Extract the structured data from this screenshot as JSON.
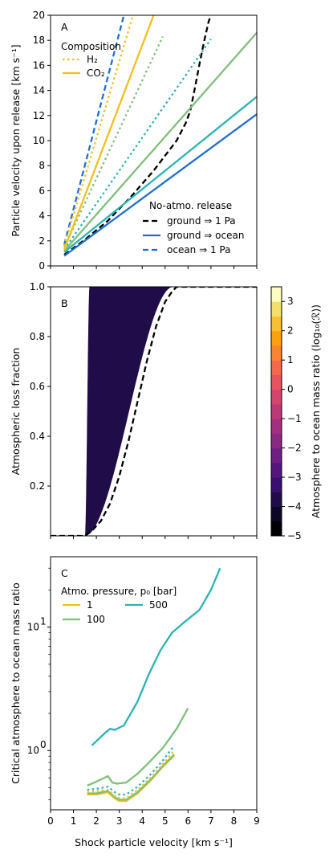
{
  "chart_data": [
    {
      "type": "line",
      "panel_label": "A",
      "ylabel": "Particle velocity upon release [km s⁻¹]",
      "xlim": [
        0,
        9
      ],
      "ylim": [
        0,
        20
      ],
      "yticks": [
        "0",
        "2",
        "4",
        "6",
        "8",
        "10",
        "12",
        "14",
        "16",
        "18",
        "20"
      ],
      "legend_composition": {
        "title": "Composition",
        "entries": [
          {
            "label": "H₂",
            "style": "dotted",
            "color": "#f2c01c"
          },
          {
            "label": "CO₂",
            "style": "solid",
            "color": "#f2c01c"
          }
        ]
      },
      "legend_release": {
        "title": "No-atmo. release",
        "entries": [
          {
            "label": "ground ⇒ 1 Pa",
            "style": "dashed",
            "color": "#000000"
          },
          {
            "label": "ground ⇒ ocean",
            "style": "solid",
            "color": "#1f6fd0"
          },
          {
            "label": "ocean ⇒ 1 Pa",
            "style": "dashed",
            "color": "#1f6fd0"
          }
        ]
      },
      "series": [
        {
          "style": "dashed",
          "color": "#000000",
          "x": [
            0.6,
            1.5,
            2.5,
            3.5,
            4.5,
            5.5,
            5.9,
            6.1,
            6.3,
            6.5,
            6.7,
            6.9,
            7.0
          ],
          "y": [
            0.9,
            2.1,
            3.6,
            5.5,
            7.6,
            10.0,
            11.4,
            12.4,
            14.2,
            16.1,
            17.9,
            19.5,
            20.0
          ]
        },
        {
          "style": "solid",
          "color": "#1f6fd0",
          "x": [
            0.6,
            9.0
          ],
          "y": [
            0.8,
            12.1
          ]
        },
        {
          "style": "dashed",
          "color": "#1f6fd0",
          "x": [
            0.6,
            3.2
          ],
          "y": [
            1.7,
            20.0
          ]
        },
        {
          "style": "solid",
          "color": "#2ab3b3",
          "x": [
            0.6,
            9.0
          ],
          "y": [
            1.1,
            13.5
          ]
        },
        {
          "style": "dotted",
          "color": "#2ab3b3",
          "x": [
            0.6,
            7.0
          ],
          "y": [
            1.3,
            18.1
          ]
        },
        {
          "style": "solid",
          "color": "#7fbf7b",
          "x": [
            0.6,
            9.0
          ],
          "y": [
            1.2,
            18.6
          ]
        },
        {
          "style": "dotted",
          "color": "#7fbf7b",
          "x": [
            0.6,
            4.9
          ],
          "y": [
            1.5,
            18.3
          ]
        },
        {
          "style": "solid",
          "color": "#f2c01c",
          "x": [
            0.6,
            4.5
          ],
          "y": [
            1.3,
            20.0
          ]
        },
        {
          "style": "dotted",
          "color": "#f2c01c",
          "x": [
            0.6,
            3.6
          ],
          "y": [
            1.6,
            20.0
          ]
        }
      ]
    },
    {
      "type": "area",
      "panel_label": "B",
      "ylabel": "Atmospheric loss fraction",
      "xlim": [
        0,
        9
      ],
      "ylim": [
        0,
        1.0
      ],
      "yticks": [
        "0.2",
        "0.4",
        "0.6",
        "0.8",
        "1.0"
      ],
      "colorbar": {
        "label": "Atmosphere to ocean mass ratio (log₁₀(ℛ))",
        "range": [
          -5,
          3.5
        ],
        "ticks": [
          "−5",
          "−4",
          "−3",
          "−2",
          "−1",
          "0",
          "1",
          "2",
          "3"
        ],
        "colors": [
          "#000004",
          "#0b0725",
          "#210c4a",
          "#3b0f6f",
          "#56147d",
          "#6f1f81",
          "#8a2981",
          "#a3307e",
          "#bc3978",
          "#d5446d",
          "#e8535e",
          "#f4694c",
          "#fa8432",
          "#fca10d",
          "#f8c030",
          "#f3e06b",
          "#fcfdbf"
        ]
      },
      "band_start_x": 1.5,
      "band_range_x": [
        1.7,
        5.2
      ],
      "boundary_curve": {
        "style": "dashed",
        "color": "#000000",
        "x": [
          0,
          1.5,
          1.8,
          2.2,
          2.6,
          3.0,
          3.4,
          3.8,
          4.2,
          4.6,
          5.0,
          5.3,
          5.5,
          9.0
        ],
        "y": [
          0.0,
          0.0,
          0.02,
          0.06,
          0.13,
          0.24,
          0.38,
          0.54,
          0.7,
          0.84,
          0.94,
          0.98,
          1.0,
          1.0
        ]
      }
    },
    {
      "type": "line",
      "panel_label": "C",
      "ylabel": "Critical atmosphere to ocean mass ratio",
      "xlabel": "Shock particle velocity [km s⁻¹]",
      "xlim": [
        0,
        9
      ],
      "ylim_log10": [
        -0.48,
        1.57
      ],
      "yscale": "log",
      "xticks": [
        "0",
        "1",
        "2",
        "3",
        "4",
        "5",
        "6",
        "7",
        "8",
        "9"
      ],
      "legend_pressure": {
        "title": "Atmo. pressure, p₀ [bar]",
        "entries": [
          {
            "label": "1",
            "color": "#f2c01c"
          },
          {
            "label": "100",
            "color": "#7fbf7b"
          },
          {
            "label": "500",
            "color": "#2ab3b3"
          }
        ]
      },
      "series": [
        {
          "name": "500",
          "style": "solid",
          "color": "#2ab3b3",
          "x": [
            1.8,
            2.4,
            2.6,
            2.8,
            3.2,
            3.8,
            4.3,
            4.8,
            5.3,
            5.8,
            6.5,
            7.0,
            7.4
          ],
          "y": [
            1.1,
            1.4,
            1.5,
            1.47,
            1.6,
            2.5,
            4.2,
            6.5,
            9.0,
            10.8,
            13.8,
            20.0,
            30.0
          ]
        },
        {
          "name": "100",
          "style": "solid",
          "color": "#7fbf7b",
          "x": [
            1.6,
            2.0,
            2.5,
            2.7,
            2.9,
            3.3,
            3.8,
            4.3,
            4.9,
            5.5,
            6.0
          ],
          "y": [
            0.52,
            0.56,
            0.62,
            0.55,
            0.54,
            0.55,
            0.65,
            0.8,
            1.05,
            1.5,
            2.2
          ]
        },
        {
          "name": "1",
          "style": "solid",
          "color": "#f2c01c",
          "x": [
            1.6,
            2.0,
            2.5,
            2.8,
            3.0,
            3.3,
            3.8,
            4.4,
            4.9,
            5.4
          ],
          "y": [
            0.44,
            0.44,
            0.46,
            0.41,
            0.39,
            0.39,
            0.45,
            0.58,
            0.74,
            0.91
          ]
        },
        {
          "style": "solid",
          "color": "#7fbf7b",
          "x": [
            1.6,
            2.0,
            2.5,
            2.8,
            3.0,
            3.3,
            3.8,
            4.4,
            4.9,
            5.4
          ],
          "y": [
            0.45,
            0.45,
            0.47,
            0.42,
            0.4,
            0.4,
            0.46,
            0.59,
            0.75,
            0.93
          ]
        },
        {
          "style": "dotted",
          "color": "#2ab3b3",
          "x": [
            1.6,
            2.0,
            2.5,
            2.8,
            3.0,
            3.3,
            3.8,
            4.4,
            4.9,
            5.4
          ],
          "y": [
            0.48,
            0.49,
            0.51,
            0.46,
            0.44,
            0.44,
            0.51,
            0.65,
            0.83,
            1.1
          ]
        },
        {
          "style": "dotted",
          "color": "#f2c01c",
          "x": [
            1.6,
            2.0,
            2.5,
            2.8,
            3.0,
            3.3,
            3.8,
            4.4,
            4.9,
            5.4
          ],
          "y": [
            0.46,
            0.47,
            0.48,
            0.43,
            0.41,
            0.41,
            0.48,
            0.61,
            0.78,
            1.0
          ]
        }
      ]
    }
  ]
}
